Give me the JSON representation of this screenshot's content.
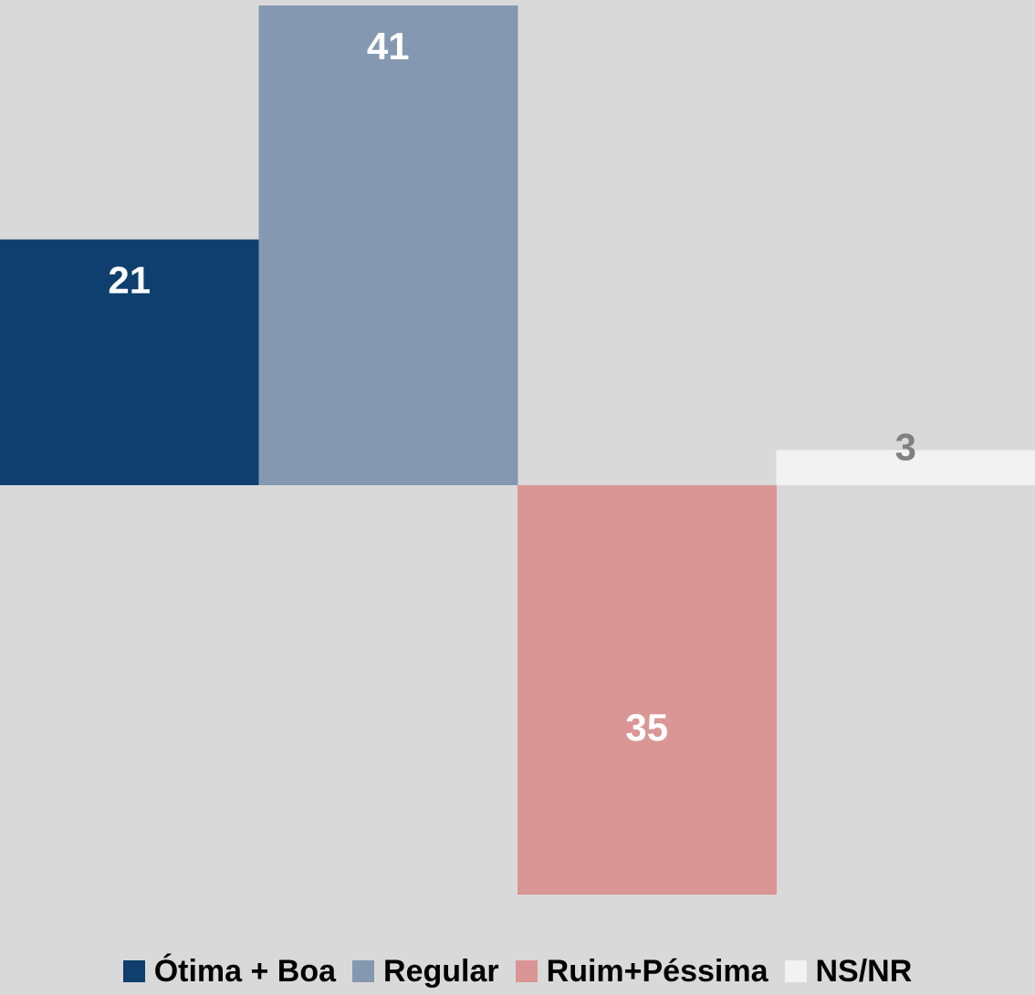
{
  "chart_data": {
    "type": "bar",
    "categories": [
      "Ótima + Boa",
      "Regular",
      "Ruim+Péssima",
      "NS/NR"
    ],
    "values": [
      21,
      41,
      -35,
      3
    ],
    "value_labels": [
      "21",
      "41",
      "35",
      "3"
    ],
    "colors": [
      "#0e3f6e",
      "#8498b1",
      "#da9695",
      "#f2f2f2"
    ],
    "label_colors": [
      "#ffffff",
      "#ffffff",
      "#ffffff",
      "#808080"
    ],
    "ylim": [
      -35,
      41
    ],
    "legend": "bottom"
  }
}
